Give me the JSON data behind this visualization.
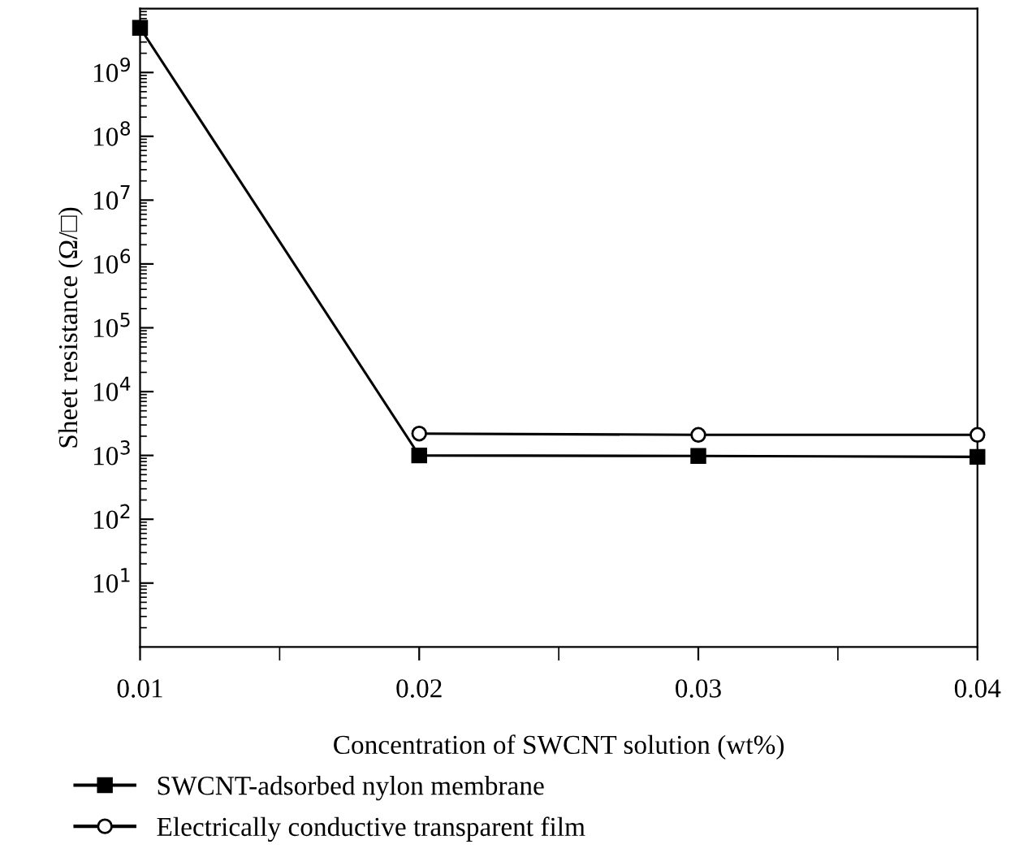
{
  "chart_data": {
    "type": "line",
    "xlabel": "Concentration of SWCNT solution (wt%)",
    "ylabel": "Sheet resistance (Ω/□)",
    "series": [
      {
        "name": "SWCNT-adsorbed nylon membrane",
        "x": [
          0.01,
          0.02,
          0.03,
          0.04
        ],
        "values": [
          5000000000,
          1000,
          980,
          950
        ],
        "color": "#000000",
        "marker": "square"
      },
      {
        "name": "Electrically conductive transparent film",
        "x": [
          0.02,
          0.03,
          0.04
        ],
        "values": [
          2200,
          2100,
          2100
        ],
        "color": "#000000",
        "marker": "circle"
      }
    ],
    "log": "y",
    "xlim": [
      0.01,
      0.04
    ],
    "ylim": [
      1,
      10000000000
    ],
    "xticks": [
      0.01,
      0.02,
      0.03,
      0.04
    ],
    "yticks": [
      {
        "value": 10,
        "label": "10$^{1}$"
      },
      {
        "value": 100,
        "label": "10$^{2}$"
      },
      {
        "value": 1000,
        "label": "10$^{3}$"
      },
      {
        "value": 10000,
        "label": "10$^{4}$"
      },
      {
        "value": 100000,
        "label": "10$^{5}$"
      },
      {
        "value": 1000000,
        "label": "10$^{6}$"
      },
      {
        "value": 10000000,
        "label": "10$^{7}$"
      },
      {
        "value": 100000000,
        "label": "10$^{8}$"
      },
      {
        "value": 1000000000,
        "label": "10$^{9}$"
      }
    ],
    "grid": false,
    "legend": "bottom",
    "line_style": "solid"
  }
}
